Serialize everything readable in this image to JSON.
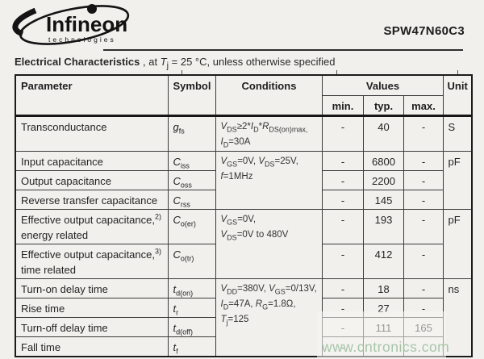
{
  "header": {
    "brand": "Infineon",
    "brand_sub": "technologies",
    "part_number": "SPW47N60C3",
    "title_bold": "Electrical Characteristics",
    "title_rest": " , at //T//~j~ = 25 °C, unless otherwise specified"
  },
  "table": {
    "headers": {
      "parameter": "Parameter",
      "symbol": "Symbol",
      "conditions": "Conditions",
      "values": "Values",
      "min": "min.",
      "typ": "typ.",
      "max": "max.",
      "unit": "Unit"
    },
    "rows": [
      {
        "param": "Transconductance",
        "symbol": "//g//~fs~",
        "cond": "//V//~DS~≥2*//I//~D~*//R//~DS(on)max,~\n//I//~D~=30A",
        "min": "-",
        "typ": "40",
        "max": "-",
        "unit": "S"
      },
      {
        "param": "Input capacitance",
        "symbol": "//C//~iss~",
        "cond": "//V//~GS~=0V, //V//~DS~=25V,\n//f//=1MHz",
        "min": "-",
        "typ": "6800",
        "max": "-",
        "unit": "pF"
      },
      {
        "param": "Output capacitance",
        "symbol": "//C//~oss~",
        "min": "-",
        "typ": "2200",
        "max": "-"
      },
      {
        "param": "Reverse transfer capacitance",
        "symbol": "//C//~rss~",
        "min": "-",
        "typ": "145",
        "max": "-"
      },
      {
        "param": "Effective output capacitance,^2)^\nenergy related",
        "symbol": "//C//~o(er)~",
        "cond": "//V//~GS~=0V,\n//V//~DS~=0V to 480V",
        "min": "-",
        "typ": "193",
        "max": "-",
        "unit": "pF"
      },
      {
        "param": "Effective output capacitance,^3)^\ntime related",
        "symbol": "//C//~o(tr)~",
        "min": "-",
        "typ": "412",
        "max": "-"
      },
      {
        "param": "Turn-on delay time",
        "symbol": "//t//~d(on)~",
        "cond": "//V//~DD~=380V, //V//~GS~=0/13V,\n//I//~D~=47A, //R//~G~=1.8Ω,\n//T//~j~=125",
        "min": "-",
        "typ": "18",
        "max": "-",
        "unit": "ns"
      },
      {
        "param": "Rise time",
        "symbol": "//t//~r~",
        "min": "-",
        "typ": "27",
        "max": "-"
      },
      {
        "param": "Turn-off delay time",
        "symbol": "//t//~d(off)~",
        "min": "-",
        "typ": "111",
        "max": "165"
      },
      {
        "param": "Fall time",
        "symbol": "//t//~f~",
        "min": "-",
        "typ": "",
        "max": ""
      }
    ]
  },
  "watermark": {
    "text": "www.cntronics.com",
    "color": "#a3c3a6"
  }
}
